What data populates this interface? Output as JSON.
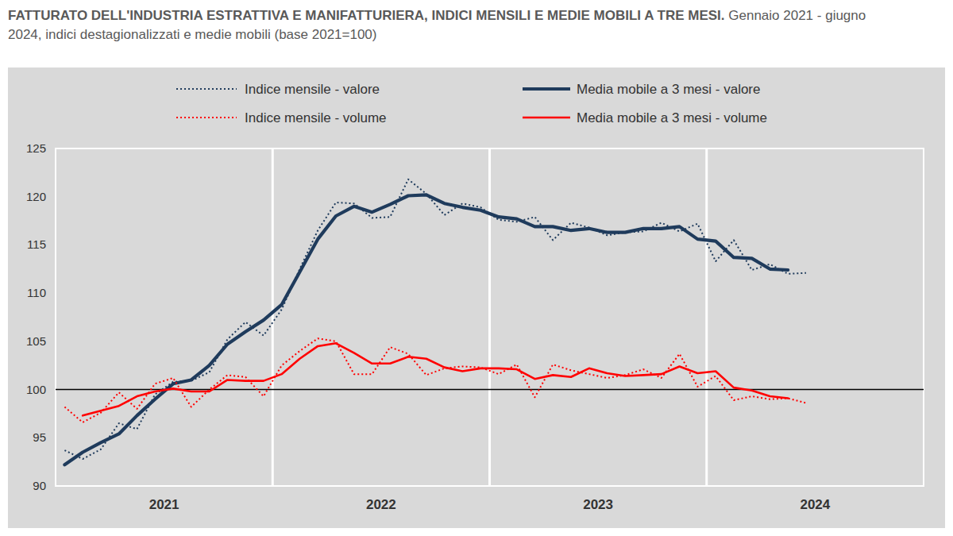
{
  "chart_data": {
    "type": "line",
    "title": "FATTURATO DELL'INDUSTRIA ESTRATTIVA E MANIFATTURIERA, INDICI MENSILI E MEDIE MOBILI A TRE MESI.",
    "subtitle": "Gennaio 2021 - giugno 2024, indici destagionalizzati e medie mobili (base 2021=100)",
    "categories": [
      "2021",
      null,
      null,
      null,
      null,
      null,
      null,
      null,
      null,
      null,
      null,
      null,
      "2022",
      null,
      null,
      null,
      null,
      null,
      null,
      null,
      null,
      null,
      null,
      null,
      "2023",
      null,
      null,
      null,
      null,
      null,
      null,
      null,
      null,
      null,
      null,
      null,
      "2024",
      null,
      null,
      null,
      null,
      null,
      null,
      null,
      null,
      null,
      null,
      null
    ],
    "series": [
      {
        "name": "Indice mensile - valore",
        "color": "#1f3b5c",
        "line_style": "dotted",
        "values": [
          93.7,
          92.8,
          93.8,
          96.5,
          95.9,
          99.5,
          100.8,
          100.9,
          101.8,
          105.2,
          107.0,
          105.6,
          108.3,
          112.5,
          116.5,
          119.4,
          119.3,
          117.8,
          117.9,
          121.8,
          120.3,
          118.1,
          119.3,
          118.9,
          117.6,
          117.4,
          117.9,
          115.5,
          117.3,
          116.8,
          116.0,
          116.3,
          116.4,
          117.3,
          116.4,
          117.2,
          113.3,
          115.5,
          112.4,
          113.0,
          112.0,
          112.1,
          null,
          null,
          null,
          null,
          null,
          null
        ]
      },
      {
        "name": "Media mobile a 3 mesi - valore",
        "color": "#1f3b5c",
        "line_style": "solid",
        "values": [
          92.2,
          93.5,
          94.5,
          95.4,
          97.3,
          99.0,
          100.6,
          101.0,
          102.5,
          104.7,
          106.0,
          107.2,
          108.8,
          112.2,
          115.6,
          118.0,
          119.0,
          118.4,
          119.2,
          120.1,
          120.2,
          119.3,
          118.9,
          118.6,
          117.9,
          117.7,
          116.9,
          116.9,
          116.5,
          116.7,
          116.3,
          116.3,
          116.7,
          116.7,
          116.9,
          115.6,
          115.4,
          113.7,
          113.6,
          112.5,
          112.4,
          null,
          null,
          null,
          null,
          null,
          null,
          null
        ]
      },
      {
        "name": "Indice mensile - volume",
        "color": "#ff0000",
        "line_style": "dotted",
        "values": [
          98.2,
          96.6,
          97.6,
          99.7,
          98.0,
          100.6,
          101.2,
          98.2,
          100.0,
          101.5,
          101.3,
          99.3,
          102.5,
          104.0,
          105.3,
          105.0,
          101.6,
          101.6,
          104.4,
          103.7,
          101.5,
          102.2,
          102.4,
          102.3,
          101.6,
          102.6,
          99.2,
          102.6,
          102.0,
          101.6,
          101.2,
          101.5,
          102.1,
          101.2,
          103.7,
          100.3,
          101.4,
          98.9,
          99.3,
          99.0,
          99.1,
          98.6,
          null,
          null,
          null,
          null,
          null,
          null
        ]
      },
      {
        "name": "Media mobile a 3 mesi - volume",
        "color": "#ff0000",
        "line_style": "solid",
        "values": [
          null,
          97.3,
          97.8,
          98.3,
          99.3,
          99.8,
          100.1,
          99.8,
          99.8,
          101.0,
          100.9,
          100.9,
          101.6,
          103.2,
          104.5,
          104.8,
          103.8,
          102.7,
          102.7,
          103.4,
          103.2,
          102.3,
          101.9,
          102.2,
          102.2,
          102.1,
          101.1,
          101.5,
          101.3,
          102.2,
          101.7,
          101.4,
          101.5,
          101.6,
          102.4,
          101.7,
          101.9,
          100.2,
          99.9,
          99.3,
          99.1,
          null,
          null,
          null,
          null,
          null,
          null,
          null
        ]
      }
    ],
    "ylim": [
      90,
      125
    ],
    "yticks": [
      90,
      95,
      100,
      105,
      110,
      115,
      120,
      125
    ],
    "baseline": 100,
    "grid": "x",
    "legend": "top"
  }
}
